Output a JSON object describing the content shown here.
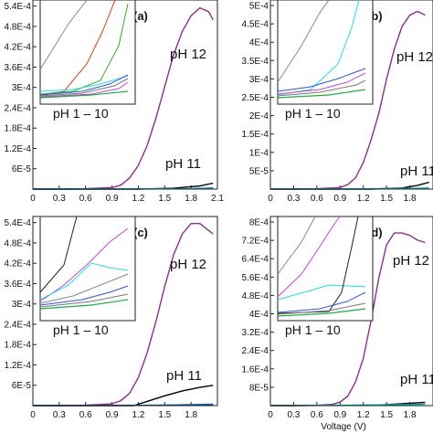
{
  "chart_data": [
    {
      "panel": "(a)",
      "type": "line",
      "xlabel": "",
      "ylabel": "",
      "xlim": [
        0,
        2.1
      ],
      "ylim": [
        0,
        0.00048
      ],
      "xticks": [
        "0",
        "0.3",
        "0.6",
        "0.9",
        "1.2",
        "1.5",
        "1.8",
        "2.1"
      ],
      "yticks": [
        "6E-5",
        "1.2E-4",
        "1.8E-4",
        "2.4E-4",
        "3E-4",
        "3.6E-4",
        "4.2E-4",
        "4.8E-4",
        "5.4E-4"
      ],
      "annotations": [
        "pH 12",
        "pH 11"
      ],
      "inset_label": "pH 1 – 10",
      "series": [
        {
          "color": "#8b2f8b",
          "x": [
            0,
            0.3,
            0.6,
            0.9,
            1.0,
            1.1,
            1.2,
            1.3,
            1.4,
            1.5,
            1.6,
            1.7,
            1.8,
            1.9,
            2.0,
            2.05
          ],
          "y": [
            0,
            0,
            1e-06,
            4e-06,
            1e-05,
            2.8e-05,
            6e-05,
            0.00011,
            0.00018,
            0.00026,
            0.00034,
            0.0004,
            0.00044,
            0.00046,
            0.00045,
            0.00043
          ]
        },
        {
          "color": "#000000",
          "x": [
            0,
            1.2,
            1.6,
            1.9,
            2.05
          ],
          "y": [
            0,
            0,
            2e-06,
            8e-06,
            1.5e-05
          ]
        },
        {
          "color": "#1f3fa0",
          "x": [
            0,
            1.8,
            2.05
          ],
          "y": [
            0,
            1e-06,
            3e-06
          ]
        },
        {
          "color": "#00aaaa",
          "x": [
            0,
            1.9,
            2.05
          ],
          "y": [
            0,
            1e-06,
            2e-06
          ]
        }
      ]
    },
    {
      "panel": "(b)",
      "type": "line",
      "xlabel": "",
      "ylabel": "",
      "xlim": [
        0,
        2.1
      ],
      "ylim": [
        0,
        0.0005
      ],
      "xticks": [
        "0",
        "0.3",
        "0.6",
        "0.9",
        "1.2",
        "1.5",
        "1.8"
      ],
      "yticks": [
        "5E-5",
        "1E-4",
        "1.5E-4",
        "2E-4",
        "2.5E-4",
        "3E-4",
        "3.5E-4",
        "4E-4",
        "4.5E-4",
        "5E-4"
      ],
      "annotations": [
        "pH 12",
        "pH 11"
      ],
      "inset_label": "pH 1 – 10",
      "series": [
        {
          "color": "#8b2f8b",
          "x": [
            0,
            0.3,
            0.6,
            0.9,
            1.0,
            1.1,
            1.2,
            1.3,
            1.4,
            1.5,
            1.6,
            1.7,
            1.8,
            1.9,
            2.0
          ],
          "y": [
            0,
            0,
            1e-06,
            4e-06,
            1.2e-05,
            3e-05,
            7e-05,
            0.00013,
            0.0002,
            0.00029,
            0.00037,
            0.00043,
            0.00046,
            0.00047,
            0.00046
          ]
        },
        {
          "color": "#000000",
          "x": [
            0,
            1.3,
            1.7,
            1.9,
            2.05
          ],
          "y": [
            0,
            0,
            3e-06,
            1e-05,
            1.8e-05
          ]
        },
        {
          "color": "#00aaaa",
          "x": [
            0,
            1.5,
            2.05
          ],
          "y": [
            0,
            1e-06,
            3e-06
          ]
        }
      ]
    },
    {
      "panel": "(c)",
      "type": "line",
      "xlabel": "",
      "ylabel": "",
      "xlim": [
        0,
        2.1
      ],
      "ylim": [
        0,
        0.00054
      ],
      "xticks": [
        "0",
        "0.3",
        "0.6",
        "0.9",
        "1.2",
        "1.5",
        "1.8"
      ],
      "yticks": [
        "6E-5",
        "1.2E-4",
        "1.8E-4",
        "2.4E-4",
        "3E-4",
        "3.6E-4",
        "4.2E-4",
        "4.8E-4",
        "5.4E-4"
      ],
      "annotations": [
        "pH 12",
        "pH 11"
      ],
      "inset_label": "pH 1 – 10",
      "series": [
        {
          "color": "#8b2f8b",
          "x": [
            0,
            0.3,
            0.6,
            0.9,
            1.0,
            1.1,
            1.2,
            1.3,
            1.4,
            1.5,
            1.6,
            1.7,
            1.8,
            1.9,
            2.0,
            2.05
          ],
          "y": [
            0,
            0,
            1e-06,
            5e-06,
            1.4e-05,
            3.5e-05,
            8e-05,
            0.00015,
            0.00024,
            0.00034,
            0.00043,
            0.00049,
            0.00052,
            0.00052,
            0.0005,
            0.00049
          ]
        },
        {
          "color": "#000000",
          "x": [
            0,
            1.15,
            1.3,
            1.5,
            1.7,
            1.9,
            2.05
          ],
          "y": [
            0,
            0,
            1.2e-05,
            2.8e-05,
            4.2e-05,
            5.2e-05,
            5.8e-05
          ]
        },
        {
          "color": "#00aaaa",
          "x": [
            0,
            1.4,
            2.05
          ],
          "y": [
            0,
            1e-06,
            4e-06
          ]
        },
        {
          "color": "#1f3fa0",
          "x": [
            0,
            1.6,
            2.05
          ],
          "y": [
            0,
            1e-06,
            3e-06
          ]
        }
      ]
    },
    {
      "panel": "(d)",
      "type": "line",
      "xlabel": "Voltage (V)",
      "ylabel": "",
      "xlim": [
        0,
        2.1
      ],
      "ylim": [
        0,
        0.0008
      ],
      "xticks": [
        "0",
        "0.3",
        "0.6",
        "0.9",
        "1.2",
        "1.5",
        "1.8"
      ],
      "yticks": [
        "8E-5",
        "1.6E-4",
        "2.4E-4",
        "3.2E-4",
        "4E-4",
        "4.8E-4",
        "5.6E-4",
        "6.4E-4",
        "7.2E-4",
        "8E-4"
      ],
      "annotations": [
        "pH 12",
        "pH 11"
      ],
      "inset_label": "pH 1 – 10",
      "series": [
        {
          "color": "#8b2f8b",
          "x": [
            0,
            0.3,
            0.6,
            0.8,
            0.9,
            1.0,
            1.1,
            1.2,
            1.3,
            1.4,
            1.5,
            1.6,
            1.7,
            1.8,
            1.9,
            2.0
          ],
          "y": [
            0,
            0,
            1e-06,
            5e-06,
            1.5e-05,
            4e-05,
            0.0001,
            0.0002,
            0.00036,
            0.00054,
            0.00068,
            0.00073,
            0.00073,
            0.00072,
            0.0007,
            0.00069
          ]
        },
        {
          "color": "#000000",
          "x": [
            0,
            1.4,
            1.7,
            2.0
          ],
          "y": [
            0,
            2e-06,
            8e-06,
            1.4e-05
          ]
        },
        {
          "color": "#00aaaa",
          "x": [
            0,
            1.2,
            2.0
          ],
          "y": [
            0,
            2e-06,
            6e-06
          ]
        }
      ]
    }
  ]
}
